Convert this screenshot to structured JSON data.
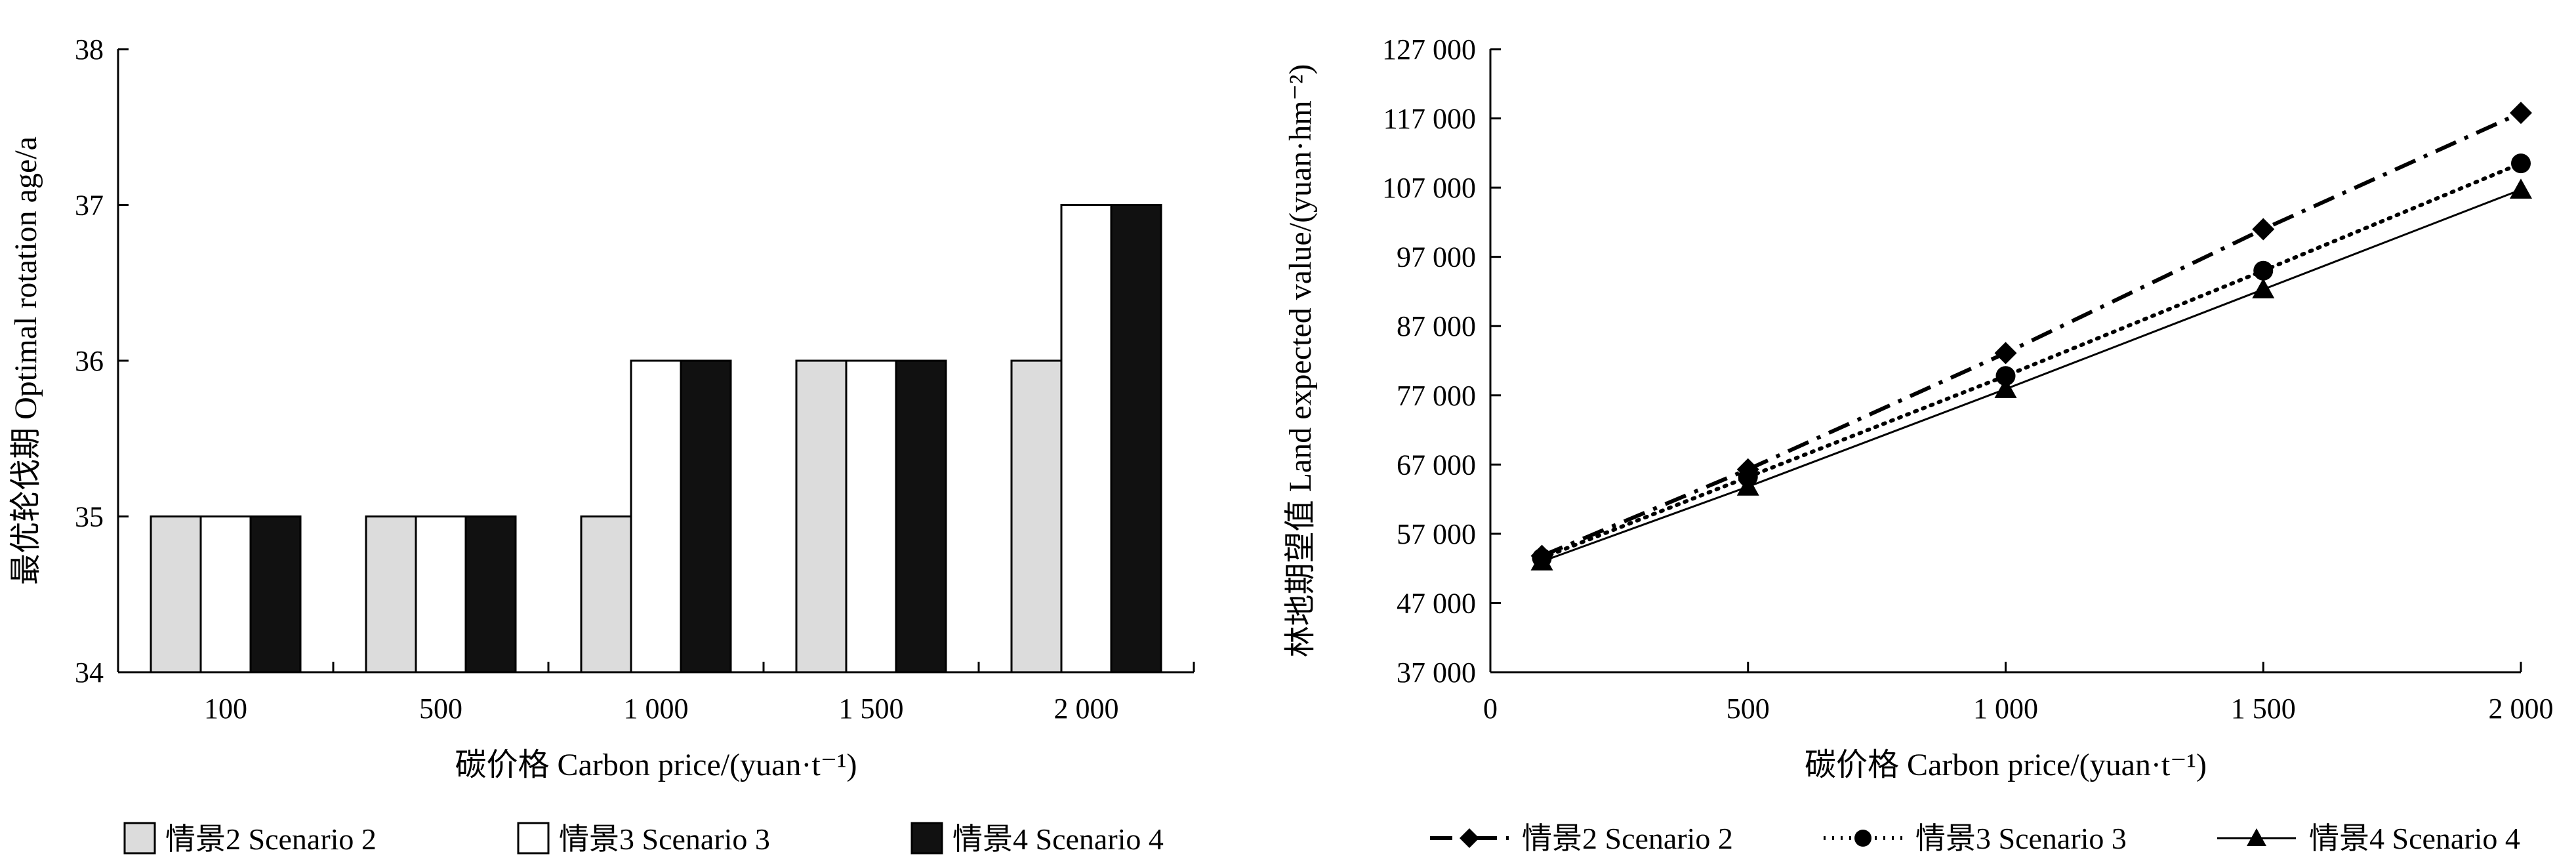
{
  "chart_data": [
    {
      "type": "bar",
      "categories": [
        "100",
        "500",
        "1 000",
        "1 500",
        "2 000"
      ],
      "series": [
        {
          "name": "情景2 Scenario 2",
          "values": [
            35,
            35,
            35,
            36,
            36
          ],
          "color": "#dcdcdc"
        },
        {
          "name": "情景3 Scenario 3",
          "values": [
            35,
            35,
            36,
            36,
            37
          ],
          "color": "#ffffff"
        },
        {
          "name": "情景4 Scenario 4",
          "values": [
            35,
            35,
            36,
            36,
            37
          ],
          "color": "#111111"
        }
      ],
      "ylim": [
        34,
        38
      ],
      "yticks": [
        "34",
        "35",
        "36",
        "37",
        "38"
      ],
      "xlabel": "碳价格  Carbon price/(yuan·t⁻¹)",
      "ylabel": "最优轮伐期  Optimal rotation age/a",
      "grid": false,
      "legend": "bottom"
    },
    {
      "type": "line",
      "x": [
        100,
        500,
        1000,
        1500,
        2000
      ],
      "xlim": [
        0,
        2000
      ],
      "xticks": [
        {
          "value": 0,
          "label": "0"
        },
        {
          "value": 500,
          "label": "500"
        },
        {
          "value": 1000,
          "label": "1 000"
        },
        {
          "value": 1500,
          "label": "1 500"
        },
        {
          "value": 2000,
          "label": "2 000"
        }
      ],
      "ylim": [
        37000,
        127000
      ],
      "yticks": [
        {
          "value": 37000,
          "label": "37 000"
        },
        {
          "value": 47000,
          "label": "47 000"
        },
        {
          "value": 57000,
          "label": "57 000"
        },
        {
          "value": 67000,
          "label": "67 000"
        },
        {
          "value": 77000,
          "label": "77 000"
        },
        {
          "value": 87000,
          "label": "87 000"
        },
        {
          "value": 97000,
          "label": "97 000"
        },
        {
          "value": 107000,
          "label": "107 000"
        },
        {
          "value": 117000,
          "label": "117 000"
        },
        {
          "value": 127000,
          "label": "127 000"
        }
      ],
      "series": [
        {
          "name": "情景2 Scenario 2",
          "values": [
            53800,
            66300,
            83100,
            101000,
            117800
          ],
          "marker": "diamond",
          "dash": "34 14 6 14"
        },
        {
          "name": "情景3 Scenario 3",
          "values": [
            53500,
            65200,
            79800,
            95000,
            110500
          ],
          "marker": "circle",
          "dash": "3 10"
        },
        {
          "name": "情景4 Scenario 4",
          "values": [
            53000,
            63800,
            77900,
            92300,
            106700
          ],
          "marker": "triangle",
          "dash": ""
        }
      ],
      "xlabel": "碳价格  Carbon price/(yuan·t⁻¹)",
      "ylabel": "林地期望值  Land expected value/(yuan·hm⁻²)",
      "grid": false,
      "legend": "bottom"
    }
  ]
}
